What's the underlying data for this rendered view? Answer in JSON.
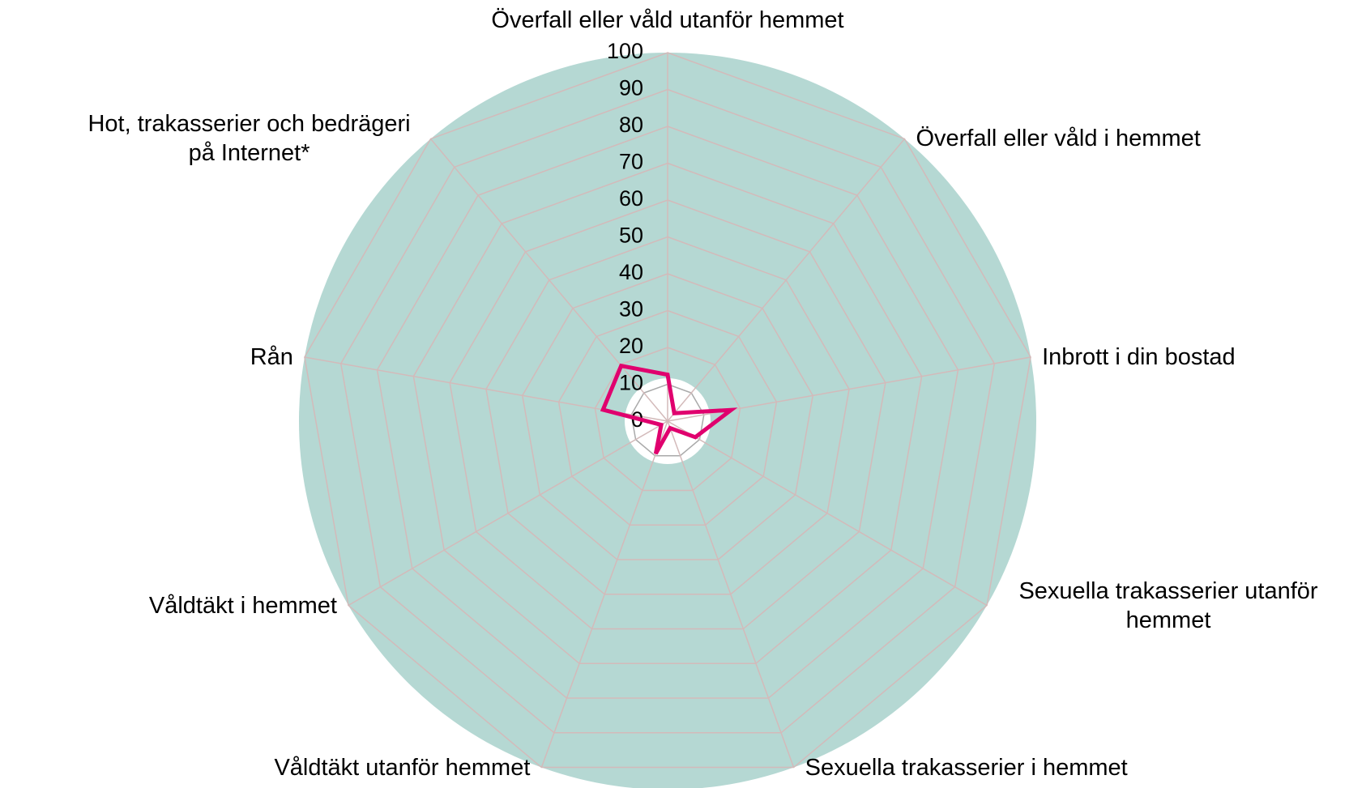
{
  "chart_data": {
    "type": "radar",
    "categories": [
      "Överfall eller våld utanför hemmet",
      "Överfall eller våld i hemmet",
      "Inbrott i din bostad",
      "Sexuella trakasserier utanför hemmet",
      "Sexuella trakasserier i hemmet",
      "Våldtäkt utanför hemmet",
      "Våldtäkt i hemmet",
      "Rån",
      "Hot, trakasserier och bedrägeri på Internet*"
    ],
    "series": [
      {
        "color": "#e0006e",
        "values": [
          12.6,
          2.8,
          17.5,
          8.7,
          2,
          9.4,
          2,
          17.8,
          19.6
        ]
      }
    ],
    "ylim": [
      0,
      100
    ],
    "yticks": [
      0,
      10,
      20,
      30,
      40,
      50,
      60,
      70,
      80,
      90,
      100
    ],
    "grid": true
  }
}
